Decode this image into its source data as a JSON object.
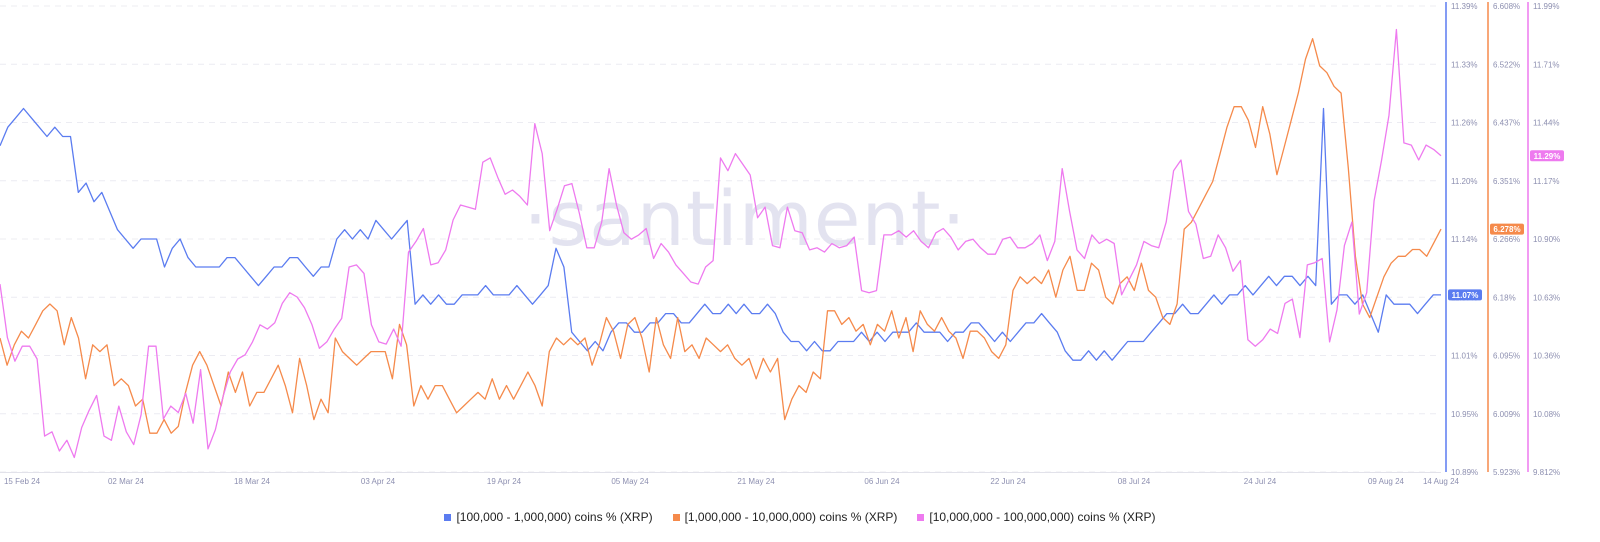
{
  "chart_data": {
    "type": "line",
    "watermark": "·santiment·",
    "x_ticks": [
      "15 Feb 24",
      "02 Mar 24",
      "18 Mar 24",
      "03 Apr 24",
      "19 Apr 24",
      "05 May 24",
      "21 May 24",
      "06 Jun 24",
      "22 Jun 24",
      "08 Jul 24",
      "24 Jul 24",
      "09 Aug 24",
      "14 Aug 24"
    ],
    "x_range": [
      "2024-02-15",
      "2024-08-14"
    ],
    "grid": true,
    "legend_position": "bottom",
    "axes": [
      {
        "id": "blue",
        "color": "#5b7cf0",
        "range": [
          10.89,
          11.39
        ],
        "ticks": [
          "11.39%",
          "11.33%",
          "11.26%",
          "11.20%",
          "11.14%",
          "11.07%",
          "11.01%",
          "10.95%",
          "10.89%"
        ],
        "last_label": "11.07%"
      },
      {
        "id": "orange",
        "color": "#f58a4b",
        "range": [
          5.923,
          6.608
        ],
        "ticks": [
          "6.608%",
          "6.522%",
          "6.437%",
          "6.351%",
          "6.266%",
          "6.18%",
          "6.095%",
          "6.009%",
          "5.923%"
        ],
        "last_label": "6.278%"
      },
      {
        "id": "pink",
        "color": "#ee7aef",
        "range": [
          9.812,
          11.99
        ],
        "ticks": [
          "11.99%",
          "11.71%",
          "11.44%",
          "11.17%",
          "10.90%",
          "10.63%",
          "10.36%",
          "10.08%",
          "9.812%"
        ],
        "last_label": "11.29%"
      }
    ],
    "series": [
      {
        "name": "[100,000  - 1,000,000) coins % (XRP)",
        "color": "#5b7cf0",
        "axis": 0,
        "values": [
          11.24,
          11.26,
          11.27,
          11.28,
          11.27,
          11.26,
          11.25,
          11.26,
          11.25,
          11.25,
          11.19,
          11.2,
          11.18,
          11.19,
          11.17,
          11.15,
          11.14,
          11.13,
          11.14,
          11.14,
          11.14,
          11.11,
          11.13,
          11.14,
          11.12,
          11.11,
          11.11,
          11.11,
          11.11,
          11.12,
          11.12,
          11.11,
          11.1,
          11.09,
          11.1,
          11.11,
          11.11,
          11.12,
          11.12,
          11.11,
          11.1,
          11.11,
          11.11,
          11.14,
          11.15,
          11.14,
          11.15,
          11.14,
          11.16,
          11.15,
          11.14,
          11.15,
          11.16,
          11.07,
          11.08,
          11.07,
          11.08,
          11.07,
          11.07,
          11.08,
          11.08,
          11.08,
          11.09,
          11.08,
          11.08,
          11.08,
          11.09,
          11.08,
          11.07,
          11.08,
          11.09,
          11.13,
          11.11,
          11.04,
          11.03,
          11.02,
          11.03,
          11.02,
          11.04,
          11.05,
          11.05,
          11.04,
          11.04,
          11.05,
          11.05,
          11.06,
          11.06,
          11.05,
          11.05,
          11.06,
          11.07,
          11.06,
          11.06,
          11.07,
          11.06,
          11.07,
          11.06,
          11.06,
          11.07,
          11.06,
          11.04,
          11.03,
          11.03,
          11.02,
          11.03,
          11.02,
          11.02,
          11.03,
          11.03,
          11.03,
          11.04,
          11.03,
          11.04,
          11.03,
          11.04,
          11.04,
          11.04,
          11.05,
          11.04,
          11.04,
          11.04,
          11.03,
          11.04,
          11.04,
          11.05,
          11.05,
          11.04,
          11.03,
          11.04,
          11.03,
          11.04,
          11.05,
          11.05,
          11.06,
          11.05,
          11.04,
          11.02,
          11.01,
          11.01,
          11.02,
          11.01,
          11.02,
          11.01,
          11.02,
          11.03,
          11.03,
          11.03,
          11.04,
          11.05,
          11.06,
          11.06,
          11.07,
          11.06,
          11.06,
          11.07,
          11.08,
          11.07,
          11.08,
          11.08,
          11.09,
          11.08,
          11.09,
          11.1,
          11.09,
          11.1,
          11.1,
          11.09,
          11.1,
          11.09,
          11.28,
          11.07,
          11.08,
          11.08,
          11.07,
          11.08,
          11.06,
          11.04,
          11.08,
          11.07,
          11.07,
          11.07,
          11.06,
          11.07,
          11.08,
          11.08
        ]
      },
      {
        "name": "[1,000,000 - 10,000,000) coins % (XRP)",
        "color": "#f58a4b",
        "axis": 1,
        "values": [
          6.12,
          6.08,
          6.11,
          6.13,
          6.12,
          6.14,
          6.16,
          6.17,
          6.16,
          6.11,
          6.15,
          6.12,
          6.06,
          6.11,
          6.1,
          6.11,
          6.05,
          6.06,
          6.05,
          6.02,
          6.03,
          5.98,
          5.98,
          6.0,
          5.98,
          5.99,
          6.04,
          6.08,
          6.1,
          6.08,
          6.05,
          6.02,
          6.07,
          6.04,
          6.07,
          6.02,
          6.04,
          6.04,
          6.06,
          6.08,
          6.05,
          6.01,
          6.09,
          6.05,
          6.0,
          6.03,
          6.01,
          6.12,
          6.1,
          6.09,
          6.08,
          6.09,
          6.1,
          6.1,
          6.1,
          6.06,
          6.14,
          6.11,
          6.02,
          6.05,
          6.03,
          6.05,
          6.05,
          6.03,
          6.01,
          6.02,
          6.03,
          6.04,
          6.03,
          6.06,
          6.03,
          6.05,
          6.03,
          6.05,
          6.07,
          6.05,
          6.02,
          6.1,
          6.12,
          6.11,
          6.12,
          6.11,
          6.12,
          6.08,
          6.11,
          6.15,
          6.13,
          6.09,
          6.14,
          6.15,
          6.12,
          6.07,
          6.15,
          6.11,
          6.09,
          6.15,
          6.1,
          6.11,
          6.09,
          6.12,
          6.11,
          6.1,
          6.11,
          6.09,
          6.08,
          6.09,
          6.06,
          6.09,
          6.07,
          6.09,
          6.0,
          6.03,
          6.05,
          6.04,
          6.07,
          6.06,
          6.16,
          6.16,
          6.14,
          6.15,
          6.13,
          6.14,
          6.11,
          6.14,
          6.13,
          6.16,
          6.12,
          6.15,
          6.1,
          6.16,
          6.14,
          6.13,
          6.15,
          6.13,
          6.12,
          6.09,
          6.13,
          6.13,
          6.12,
          6.1,
          6.09,
          6.11,
          6.19,
          6.21,
          6.2,
          6.21,
          6.2,
          6.22,
          6.18,
          6.22,
          6.24,
          6.19,
          6.19,
          6.23,
          6.22,
          6.18,
          6.17,
          6.2,
          6.21,
          6.19,
          6.23,
          6.19,
          6.18,
          6.15,
          6.14,
          6.17,
          6.28,
          6.29,
          6.31,
          6.33,
          6.35,
          6.39,
          6.43,
          6.46,
          6.46,
          6.44,
          6.4,
          6.46,
          6.42,
          6.36,
          6.4,
          6.44,
          6.48,
          6.53,
          6.56,
          6.52,
          6.51,
          6.49,
          6.48,
          6.37,
          6.24,
          6.17,
          6.15,
          6.18,
          6.21,
          6.23,
          6.24,
          6.24,
          6.25,
          6.25,
          6.24,
          6.26,
          6.28
        ]
      },
      {
        "name": "[10,000,000 - 100,000,000) coins % (XRP)",
        "color": "#ee7aef",
        "axis": 2,
        "values": [
          10.69,
          10.44,
          10.33,
          10.4,
          10.4,
          10.34,
          9.98,
          10.0,
          9.91,
          9.96,
          9.88,
          10.02,
          10.1,
          10.17,
          9.98,
          9.96,
          10.12,
          10.0,
          9.94,
          10.08,
          10.4,
          10.4,
          10.06,
          10.12,
          10.09,
          10.18,
          10.04,
          10.29,
          9.92,
          10.01,
          10.16,
          10.28,
          10.34,
          10.36,
          10.42,
          10.5,
          10.48,
          10.51,
          10.6,
          10.65,
          10.63,
          10.58,
          10.5,
          10.39,
          10.42,
          10.48,
          10.53,
          10.77,
          10.78,
          10.74,
          10.5,
          10.42,
          10.41,
          10.48,
          10.4,
          10.84,
          10.89,
          10.95,
          10.78,
          10.79,
          10.85,
          10.99,
          11.06,
          11.05,
          11.04,
          11.26,
          11.28,
          11.19,
          11.11,
          11.13,
          11.1,
          11.06,
          11.44,
          11.3,
          10.94,
          11.04,
          11.15,
          11.16,
          11.02,
          10.86,
          10.86,
          10.98,
          11.23,
          11.06,
          10.93,
          10.9,
          10.92,
          10.95,
          10.81,
          10.88,
          10.84,
          10.78,
          10.74,
          10.7,
          10.69,
          10.77,
          10.8,
          11.28,
          11.22,
          11.3,
          11.25,
          11.2,
          11.0,
          11.05,
          10.87,
          10.86,
          11.05,
          10.94,
          10.93,
          10.85,
          10.86,
          10.84,
          10.88,
          10.86,
          10.87,
          10.91,
          10.66,
          10.65,
          10.66,
          10.92,
          10.92,
          10.94,
          10.91,
          10.94,
          10.89,
          10.86,
          10.93,
          10.95,
          10.91,
          10.85,
          10.89,
          10.9,
          10.86,
          10.83,
          10.83,
          10.9,
          10.91,
          10.86,
          10.86,
          10.88,
          10.92,
          10.8,
          10.89,
          11.23,
          11.03,
          10.85,
          10.81,
          10.92,
          10.88,
          10.9,
          10.88,
          10.64,
          10.71,
          10.78,
          10.89,
          10.87,
          10.86,
          10.98,
          11.22,
          11.27,
          11.03,
          10.97,
          10.81,
          10.82,
          10.92,
          10.86,
          10.75,
          10.8,
          10.43,
          10.4,
          10.43,
          10.48,
          10.46,
          10.6,
          10.62,
          10.44,
          10.78,
          10.79,
          10.81,
          10.42,
          10.57,
          10.87,
          10.98,
          10.55,
          10.65,
          11.08,
          11.27,
          11.48,
          11.88,
          11.35,
          11.34,
          11.27,
          11.34,
          11.32,
          11.29
        ]
      }
    ]
  }
}
